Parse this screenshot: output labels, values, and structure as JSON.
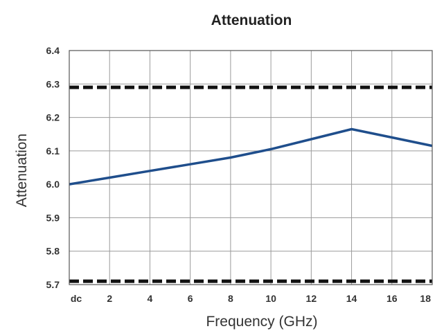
{
  "chart_data": {
    "type": "line",
    "title": "Attenuation",
    "xlabel": "Frequency (GHz)",
    "ylabel": "Attenuation",
    "xlim": [
      0,
      18
    ],
    "ylim": [
      5.7,
      6.4
    ],
    "x_ticks": [
      {
        "value": 0,
        "label": "dc"
      },
      {
        "value": 2,
        "label": "2"
      },
      {
        "value": 4,
        "label": "4"
      },
      {
        "value": 6,
        "label": "6"
      },
      {
        "value": 8,
        "label": "8"
      },
      {
        "value": 10,
        "label": "10"
      },
      {
        "value": 12,
        "label": "12"
      },
      {
        "value": 14,
        "label": "14"
      },
      {
        "value": 16,
        "label": "16"
      },
      {
        "value": 18,
        "label": "18"
      }
    ],
    "y_ticks": [
      {
        "value": 6.4,
        "label": "6.4"
      },
      {
        "value": 6.3,
        "label": "6.3"
      },
      {
        "value": 6.2,
        "label": "6.2"
      },
      {
        "value": 6.1,
        "label": "6.1"
      },
      {
        "value": 6.0,
        "label": "6.0"
      },
      {
        "value": 5.9,
        "label": "5.9"
      },
      {
        "value": 5.8,
        "label": "5.8"
      },
      {
        "value": 5.7,
        "label": "5.7"
      }
    ],
    "grid": true,
    "series": [
      {
        "color": "#1f4e8c",
        "x": [
          0,
          2,
          4,
          6,
          8,
          10,
          12,
          14,
          16,
          18
        ],
        "values": [
          6.0,
          6.02,
          6.04,
          6.06,
          6.08,
          6.105,
          6.135,
          6.165,
          6.14,
          6.115
        ]
      }
    ],
    "limit_lines": [
      {
        "value": 6.29,
        "style": "dashed",
        "color": "#111111"
      },
      {
        "value": 5.71,
        "style": "dashed",
        "color": "#111111"
      }
    ]
  }
}
